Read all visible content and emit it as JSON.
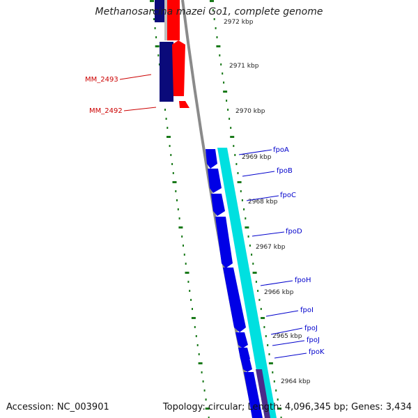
{
  "title": "Methanosarcina mazei Go1, complete genome",
  "footer": {
    "accession": "Accession: NC_003901",
    "summary": "Topology: circular; Length: 4,096,345 bp; Genes: 3,434"
  },
  "colors": {
    "backbone": "#8a8a8a",
    "tick": "#1a7a1a",
    "gene_dark": "#0a0a7a",
    "gene_red": "#ff0000",
    "gene_blue": "#0000e6",
    "gene_cyan": "#00e0e0",
    "label_red": "#cc0000",
    "label_blue": "#0000cc"
  },
  "ticks": [
    {
      "label": "2972 kbp"
    },
    {
      "label": "2971 kbp"
    },
    {
      "label": "2970 kbp"
    },
    {
      "label": "2969 kbp"
    },
    {
      "label": "2968 kbp"
    },
    {
      "label": "2967 kbp"
    },
    {
      "label": "2966 kbp"
    },
    {
      "label": "2965 kbp"
    },
    {
      "label": "2964 kbp"
    }
  ],
  "genes_left": [
    {
      "name": "MM_2493",
      "color": "red"
    },
    {
      "name": "MM_2492",
      "color": "red"
    }
  ],
  "genes_right": [
    {
      "name": "fpoA"
    },
    {
      "name": "fpoB"
    },
    {
      "name": "fpoC"
    },
    {
      "name": "fpoD"
    },
    {
      "name": "fpoH"
    },
    {
      "name": "fpoI"
    },
    {
      "name": "fpoJ"
    },
    {
      "name": "fpoJ"
    },
    {
      "name": "fpoK"
    }
  ]
}
